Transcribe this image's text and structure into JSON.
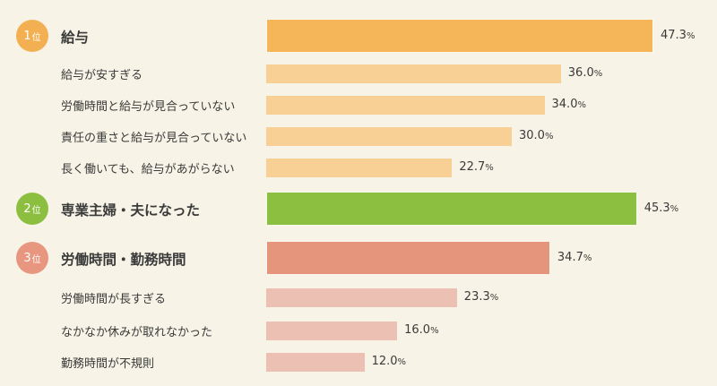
{
  "chart_data": {
    "type": "bar",
    "orientation": "horizontal",
    "unit": "%",
    "xlim": [
      0,
      100
    ],
    "rows": [
      {
        "rank": "1",
        "rank_suffix": "位",
        "label": "給与",
        "value": 47.3,
        "level": "main",
        "group": 1
      },
      {
        "label": "給与が安すぎる",
        "value": 36.0,
        "level": "sub",
        "group": 1
      },
      {
        "label": "労働時間と給与が見合っていない",
        "value": 34.0,
        "level": "sub",
        "group": 1
      },
      {
        "label": "責任の重さと給与が見合っていない",
        "value": 30.0,
        "level": "sub",
        "group": 1
      },
      {
        "label": "長く働いても、給与があがらない",
        "value": 22.7,
        "level": "sub",
        "group": 1
      },
      {
        "rank": "2",
        "rank_suffix": "位",
        "label": "専業主婦・夫になった",
        "value": 45.3,
        "level": "main",
        "group": 2
      },
      {
        "rank": "3",
        "rank_suffix": "位",
        "label": "労働時間・勤務時間",
        "value": 34.7,
        "level": "main",
        "group": 3
      },
      {
        "label": "労働時間が長すぎる",
        "value": 23.3,
        "level": "sub",
        "group": 3
      },
      {
        "label": "なかなか休みが取れなかった",
        "value": 16.0,
        "level": "sub",
        "group": 3
      },
      {
        "label": "勤務時間が不規則",
        "value": 12.0,
        "level": "sub",
        "group": 3
      }
    ]
  },
  "colors": {
    "background": "#f7f3e6",
    "group1": {
      "main": "#f5b65a",
      "sub": "#f8cf95",
      "badge": "#f3b053"
    },
    "group2": {
      "main": "#8cbf3f",
      "sub": "#b8d98a",
      "badge": "#8cbf3f"
    },
    "group3": {
      "main": "#e5957b",
      "sub": "#ecc1b4",
      "badge": "#e89680"
    }
  }
}
